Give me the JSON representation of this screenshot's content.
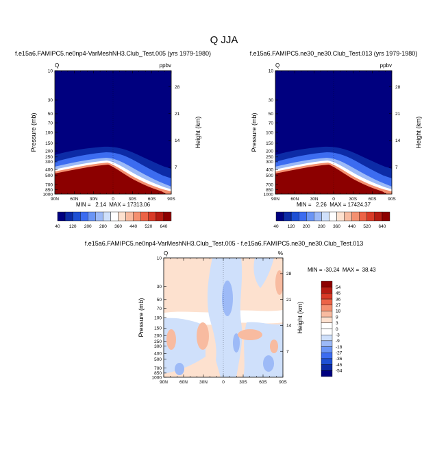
{
  "page": {
    "title": "Q JJA"
  },
  "chart_data": [
    {
      "type": "heatmap",
      "title": "f.e15a6.FAMIPC5.ne0np4-VarMeshNH3.Club_Test.005 (yrs 1979-1980)",
      "variable": "Q",
      "units": "ppbv",
      "ylabel": "Pressure (mb)",
      "y2label": "Height (km)",
      "x_ticks": [
        "90N",
        "60N",
        "30N",
        "0",
        "30S",
        "60S",
        "90S"
      ],
      "y_ticks": [
        "10",
        "30",
        "50",
        "70",
        "100",
        "150",
        "200",
        "250",
        "300",
        "400",
        "500",
        "700",
        "850",
        "1000"
      ],
      "y2_ticks": [
        "28",
        "21",
        "14",
        "7"
      ],
      "stats_text": "MIN =   2.14  MAX = 17313.06",
      "min": 2.14,
      "max": 17313.06,
      "colorbar_labels": [
        "40",
        "120",
        "200",
        "280",
        "360",
        "440",
        "520",
        "640"
      ]
    },
    {
      "type": "heatmap",
      "title": "f.e15a6.FAMIPC5.ne30_ne30.Club_Test.013 (yrs 1979-1980)",
      "variable": "Q",
      "units": "ppbv",
      "ylabel": "Pressure (mb)",
      "y2label": "Height (km)",
      "x_ticks": [
        "90N",
        "60N",
        "30N",
        "0",
        "30S",
        "60S",
        "90S"
      ],
      "y_ticks": [
        "10",
        "30",
        "50",
        "70",
        "100",
        "150",
        "200",
        "250",
        "300",
        "400",
        "500",
        "700",
        "850",
        "1000"
      ],
      "y2_ticks": [
        "28",
        "21",
        "14",
        "7"
      ],
      "stats_text": "MIN =   2.26  MAX = 17424.37",
      "min": 2.26,
      "max": 17424.37,
      "colorbar_labels": [
        "40",
        "120",
        "200",
        "280",
        "360",
        "440",
        "520",
        "640"
      ]
    },
    {
      "type": "heatmap",
      "title": "f.e15a6.FAMIPC5.ne0np4-VarMeshNH3.Club_Test.005 - f.e15a6.FAMIPC5.ne30_ne30.Club_Test.013",
      "variable": "Q",
      "units": "%",
      "ylabel": "Pressure (mb)",
      "y2label": "Height (km)",
      "x_ticks": [
        "90N",
        "60N",
        "30N",
        "0",
        "30S",
        "60S",
        "90S"
      ],
      "y_ticks": [
        "10",
        "30",
        "50",
        "70",
        "100",
        "150",
        "200",
        "250",
        "300",
        "400",
        "500",
        "700",
        "850",
        "1000"
      ],
      "y2_ticks": [
        "28",
        "21",
        "14",
        "7"
      ],
      "stats_text": "MIN = -30.24  MAX =  38.43",
      "min": -30.24,
      "max": 38.43,
      "colorbar_labels": [
        "54",
        "45",
        "36",
        "27",
        "18",
        "9",
        "3",
        "0",
        "-3",
        "-9",
        "-18",
        "-27",
        "-36",
        "-45",
        "-54"
      ]
    }
  ],
  "colors": {
    "abs_scale": [
      "#00007f",
      "#0c2ba6",
      "#1e50d4",
      "#3c6cf0",
      "#6b95f5",
      "#9dbaf7",
      "#cfe0fb",
      "#ffffff",
      "#fde1cf",
      "#f8bba0",
      "#f49070",
      "#ec6346",
      "#d83a27",
      "#b51b12",
      "#8c0000"
    ],
    "diff_scale": [
      "#8c0000",
      "#b51b12",
      "#d83a27",
      "#ec6346",
      "#f49070",
      "#f8bba0",
      "#fde1cf",
      "#ffffff",
      "#ffffff",
      "#cfe0fb",
      "#9dbaf7",
      "#6b95f5",
      "#3c6cf0",
      "#1e50d4",
      "#0c2ba6",
      "#00007f"
    ],
    "background_blue": "#00007f",
    "dark_red": "#8c0000"
  }
}
